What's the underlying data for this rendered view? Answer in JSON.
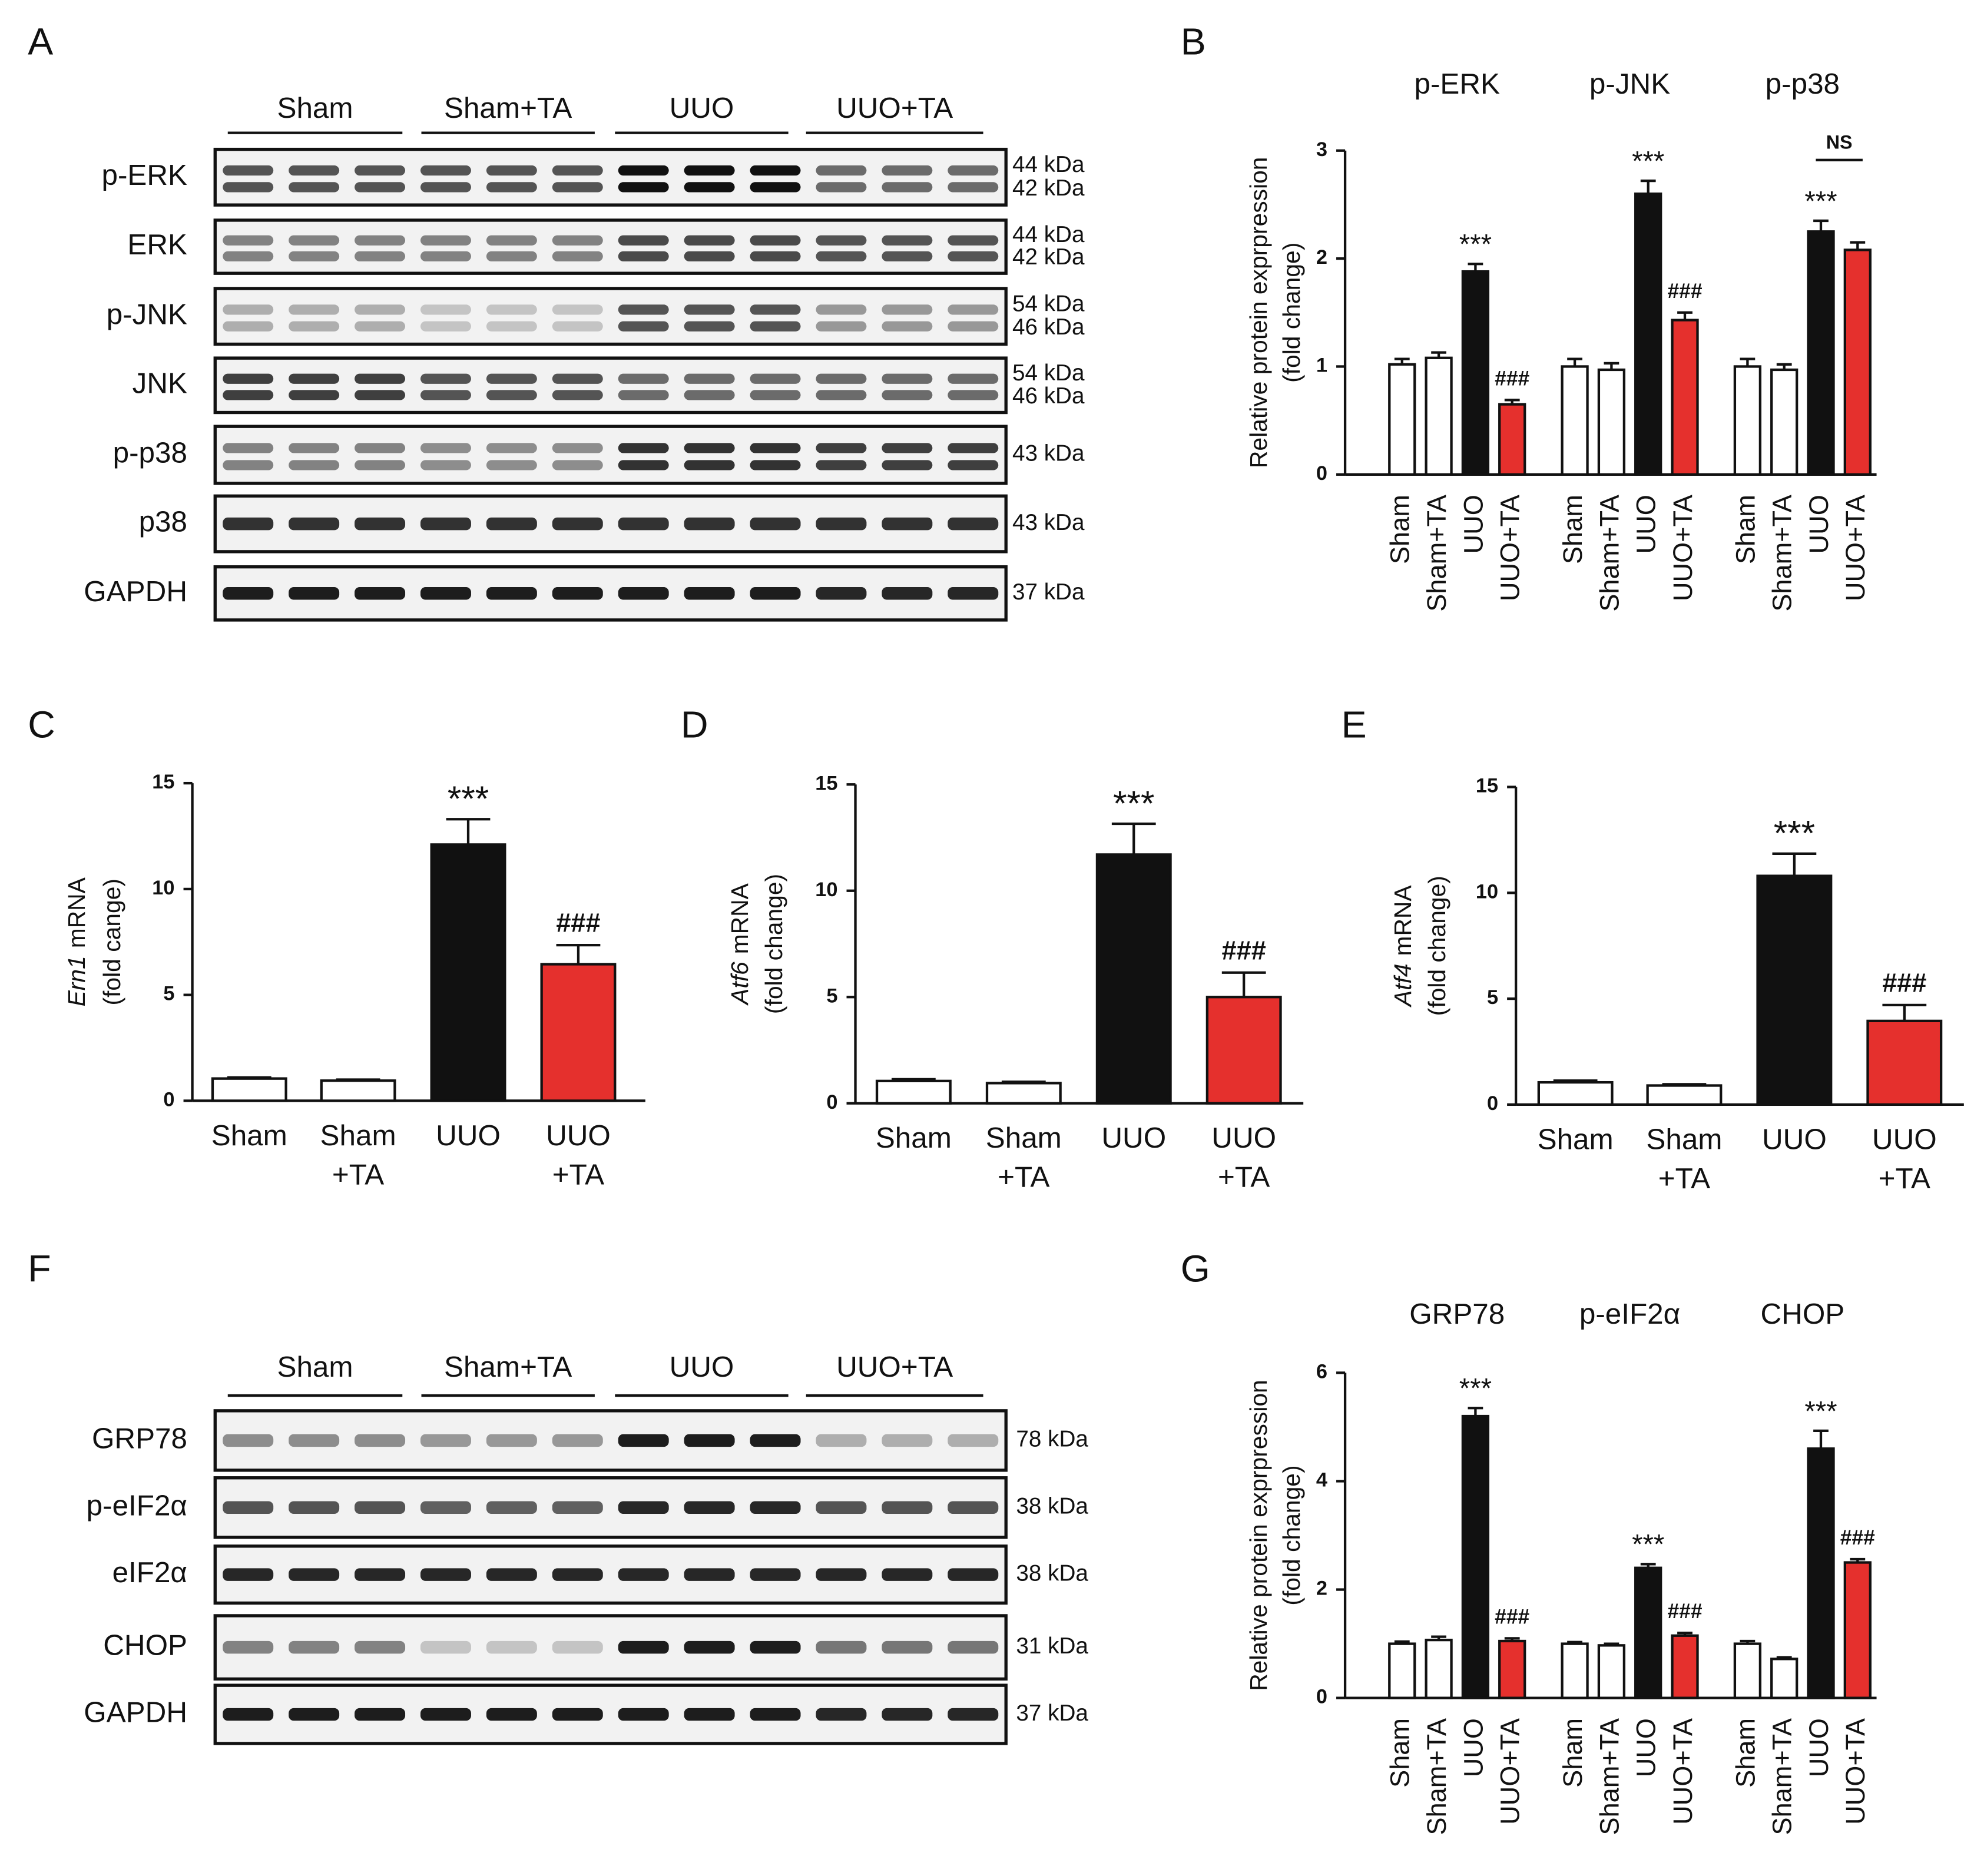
{
  "panel_labels": [
    "A",
    "B",
    "C",
    "D",
    "E",
    "F",
    "G"
  ],
  "blots": [
    {
      "groups": [
        "Sham",
        "Sham+TA",
        "UUO",
        "UUO+TA"
      ],
      "rows": [
        {
          "label": "p-ERK",
          "kda": [
            "44 kDa",
            "42 kDa"
          ]
        },
        {
          "label": "ERK",
          "kda": [
            "44 kDa",
            "42 kDa"
          ]
        },
        {
          "label": "p-JNK",
          "kda": [
            "54 kDa",
            "46 kDa"
          ]
        },
        {
          "label": "JNK",
          "kda": [
            "54 kDa",
            "46 kDa"
          ]
        },
        {
          "label": "p-p38",
          "kda": [
            "43 kDa"
          ]
        },
        {
          "label": "p38",
          "kda": [
            "43 kDa"
          ]
        },
        {
          "label": "GAPDH",
          "kda": [
            "37 kDa"
          ]
        }
      ]
    },
    {
      "groups": [
        "Sham",
        "Sham+TA",
        "UUO",
        "UUO+TA"
      ],
      "rows": [
        {
          "label": "GRP78",
          "kda": [
            "78 kDa"
          ]
        },
        {
          "label": "p-eIF2α",
          "kda": [
            "38 kDa"
          ]
        },
        {
          "label": "eIF2α",
          "kda": [
            "38 kDa"
          ]
        },
        {
          "label": "CHOP",
          "kda": [
            "31 kDa"
          ]
        },
        {
          "label": "GAPDH",
          "kda": [
            "37 kDa"
          ]
        }
      ]
    }
  ],
  "chart_data": [
    {
      "type": "grouped_bar",
      "ylabel": [
        "Relative protein exprpression",
        "(fold change)"
      ],
      "categories": [
        "Sham",
        "Sham+TA",
        "UUO",
        "UUO+TA"
      ],
      "colors": [
        "#ffffff",
        "#ffffff",
        "#111111",
        "#e5302d"
      ],
      "ylim": [
        0,
        3
      ],
      "yticks": [
        0,
        1,
        2,
        3
      ],
      "groups": [
        {
          "title": "p-ERK",
          "values": [
            1.02,
            1.08,
            1.88,
            0.65
          ],
          "errors": [
            0.05,
            0.05,
            0.07,
            0.04
          ],
          "annotations": [
            null,
            null,
            "***",
            "###"
          ]
        },
        {
          "title": "p-JNK",
          "values": [
            1.0,
            0.97,
            2.6,
            1.43
          ],
          "errors": [
            0.07,
            0.06,
            0.12,
            0.07
          ],
          "annotations": [
            null,
            null,
            "***",
            "###"
          ]
        },
        {
          "title": "p-p38",
          "values": [
            1.0,
            0.97,
            2.25,
            2.08
          ],
          "errors": [
            0.07,
            0.05,
            0.1,
            0.07
          ],
          "annotations": [
            null,
            null,
            "***",
            null
          ],
          "bracket": "NS"
        }
      ]
    },
    {
      "type": "bar",
      "ylabel_gene": "Ern1",
      "ylabel_text": "mRNA",
      "ylabel_sub": "(fold cange)",
      "categories": [
        [
          "Sham"
        ],
        [
          "Sham",
          "+TA"
        ],
        [
          "UUO"
        ],
        [
          "UUO",
          "+TA"
        ]
      ],
      "colors": [
        "#ffffff",
        "#ffffff",
        "#111111",
        "#e5302d"
      ],
      "values": [
        1.05,
        0.95,
        12.1,
        6.45
      ],
      "errors": [
        0.05,
        0.05,
        1.2,
        0.9
      ],
      "annotations": [
        null,
        null,
        "***",
        "###"
      ],
      "ylim": [
        0,
        15
      ],
      "yticks": [
        0,
        5,
        10,
        15
      ]
    },
    {
      "type": "bar",
      "ylabel_gene": "Atf6",
      "ylabel_text": "mRNA",
      "ylabel_sub": "(fold change)",
      "categories": [
        [
          "Sham"
        ],
        [
          "Sham",
          "+TA"
        ],
        [
          "UUO"
        ],
        [
          "UUO",
          "+TA"
        ]
      ],
      "colors": [
        "#ffffff",
        "#ffffff",
        "#111111",
        "#e5302d"
      ],
      "values": [
        1.05,
        0.95,
        11.7,
        5.0
      ],
      "errors": [
        0.08,
        0.06,
        1.45,
        1.15
      ],
      "annotations": [
        null,
        null,
        "***",
        "###"
      ],
      "ylim": [
        0,
        15
      ],
      "yticks": [
        0,
        5,
        10,
        15
      ]
    },
    {
      "type": "bar",
      "ylabel_gene": "Atf4",
      "ylabel_text": "mRNA",
      "ylabel_sub": "(fold change)",
      "categories": [
        [
          "Sham"
        ],
        [
          "Sham",
          "+TA"
        ],
        [
          "UUO"
        ],
        [
          "UUO",
          "+TA"
        ]
      ],
      "colors": [
        "#ffffff",
        "#ffffff",
        "#111111",
        "#e5302d"
      ],
      "values": [
        1.05,
        0.9,
        10.8,
        3.95
      ],
      "errors": [
        0.08,
        0.06,
        1.05,
        0.75
      ],
      "annotations": [
        null,
        null,
        "***",
        "###"
      ],
      "ylim": [
        0,
        15
      ],
      "yticks": [
        0,
        5,
        10,
        15
      ]
    },
    {
      "type": "grouped_bar",
      "ylabel": [
        "Relative protein exprpression",
        "(fold change)"
      ],
      "categories": [
        "Sham",
        "Sham+TA",
        "UUO",
        "UUO+TA"
      ],
      "colors": [
        "#ffffff",
        "#ffffff",
        "#111111",
        "#e5302d"
      ],
      "ylim": [
        0,
        6
      ],
      "yticks": [
        0,
        2,
        4,
        6
      ],
      "groups": [
        {
          "title": "GRP78",
          "values": [
            1.0,
            1.07,
            5.2,
            1.05
          ],
          "errors": [
            0.04,
            0.06,
            0.15,
            0.05
          ],
          "annotations": [
            null,
            null,
            "***",
            "###"
          ]
        },
        {
          "title": "p-eIF2α",
          "values": [
            1.0,
            0.97,
            2.4,
            1.15
          ],
          "errors": [
            0.03,
            0.03,
            0.07,
            0.05
          ],
          "annotations": [
            null,
            null,
            "***",
            "###"
          ]
        },
        {
          "title": "CHOP",
          "values": [
            1.0,
            0.72,
            4.6,
            2.5
          ],
          "errors": [
            0.05,
            0.03,
            0.33,
            0.06
          ],
          "annotations": [
            null,
            null,
            "***",
            "###"
          ]
        }
      ]
    }
  ]
}
